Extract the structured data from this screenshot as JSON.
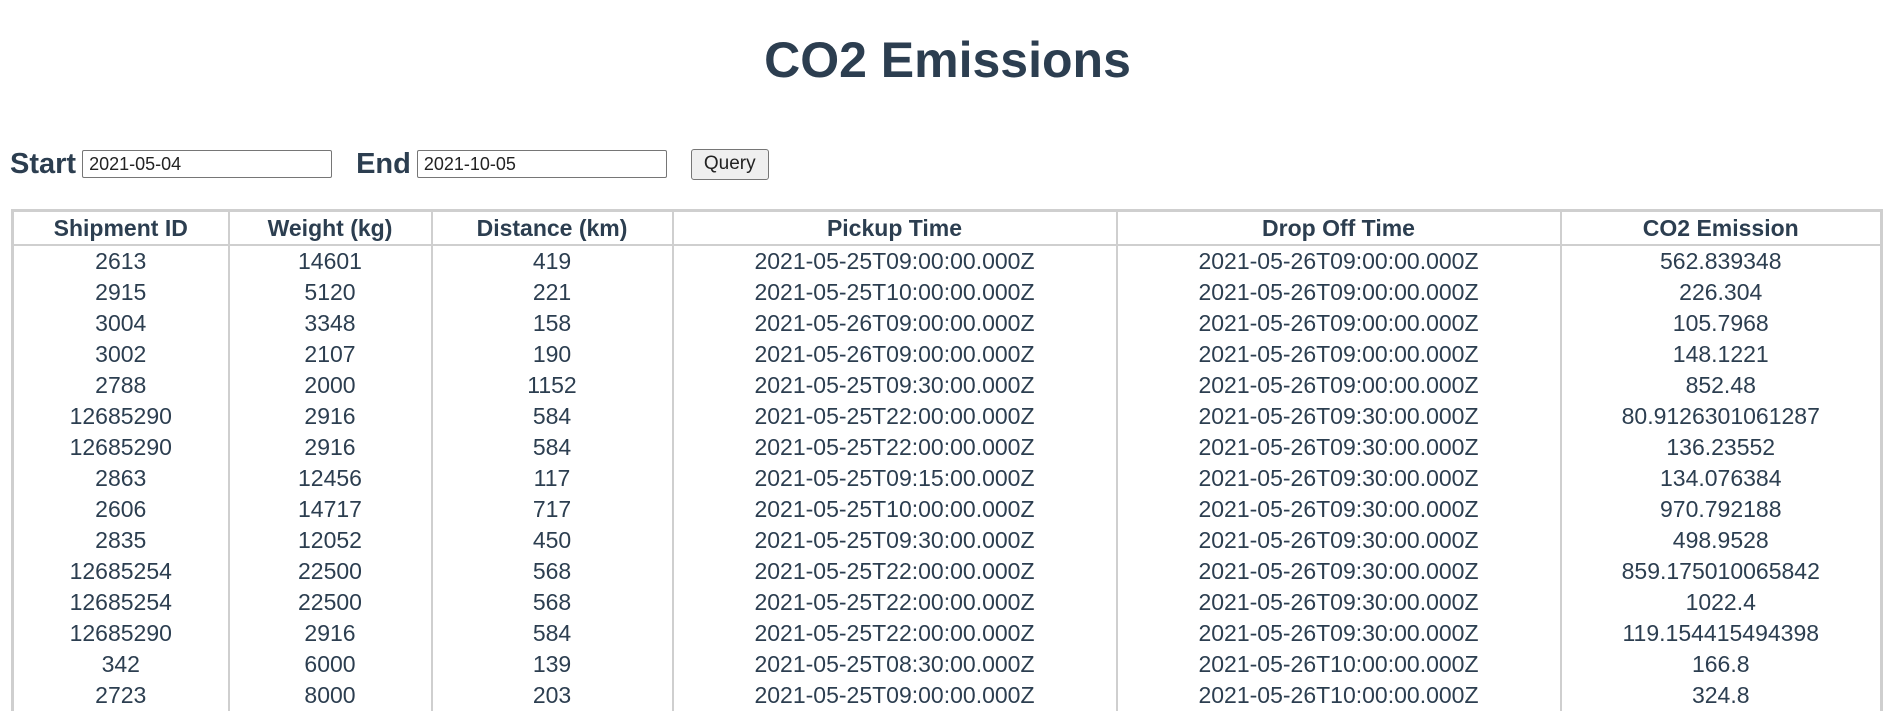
{
  "page": {
    "title": "CO2 Emissions"
  },
  "query": {
    "start_label": "Start",
    "start_value": "2021-05-04",
    "end_label": "End",
    "end_value": "2021-10-05",
    "button_label": "Query"
  },
  "table": {
    "headers": [
      "Shipment ID",
      "Weight (kg)",
      "Distance (km)",
      "Pickup Time",
      "Drop Off Time",
      "CO2 Emission"
    ],
    "rows": [
      [
        "2613",
        "14601",
        "419",
        "2021-05-25T09:00:00.000Z",
        "2021-05-26T09:00:00.000Z",
        "562.839348"
      ],
      [
        "2915",
        "5120",
        "221",
        "2021-05-25T10:00:00.000Z",
        "2021-05-26T09:00:00.000Z",
        "226.304"
      ],
      [
        "3004",
        "3348",
        "158",
        "2021-05-26T09:00:00.000Z",
        "2021-05-26T09:00:00.000Z",
        "105.7968"
      ],
      [
        "3002",
        "2107",
        "190",
        "2021-05-26T09:00:00.000Z",
        "2021-05-26T09:00:00.000Z",
        "148.1221"
      ],
      [
        "2788",
        "2000",
        "1152",
        "2021-05-25T09:30:00.000Z",
        "2021-05-26T09:00:00.000Z",
        "852.48"
      ],
      [
        "12685290",
        "2916",
        "584",
        "2021-05-25T22:00:00.000Z",
        "2021-05-26T09:30:00.000Z",
        "80.9126301061287"
      ],
      [
        "12685290",
        "2916",
        "584",
        "2021-05-25T22:00:00.000Z",
        "2021-05-26T09:30:00.000Z",
        "136.23552"
      ],
      [
        "2863",
        "12456",
        "117",
        "2021-05-25T09:15:00.000Z",
        "2021-05-26T09:30:00.000Z",
        "134.076384"
      ],
      [
        "2606",
        "14717",
        "717",
        "2021-05-25T10:00:00.000Z",
        "2021-05-26T09:30:00.000Z",
        "970.792188"
      ],
      [
        "2835",
        "12052",
        "450",
        "2021-05-25T09:30:00.000Z",
        "2021-05-26T09:30:00.000Z",
        "498.9528"
      ],
      [
        "12685254",
        "22500",
        "568",
        "2021-05-25T22:00:00.000Z",
        "2021-05-26T09:30:00.000Z",
        "859.175010065842"
      ],
      [
        "12685254",
        "22500",
        "568",
        "2021-05-25T22:00:00.000Z",
        "2021-05-26T09:30:00.000Z",
        "1022.4"
      ],
      [
        "12685290",
        "2916",
        "584",
        "2021-05-25T22:00:00.000Z",
        "2021-05-26T09:30:00.000Z",
        "119.154415494398"
      ],
      [
        "342",
        "6000",
        "139",
        "2021-05-25T08:30:00.000Z",
        "2021-05-26T10:00:00.000Z",
        "166.8"
      ],
      [
        "2723",
        "8000",
        "203",
        "2021-05-25T09:00:00.000Z",
        "2021-05-26T10:00:00.000Z",
        "324.8"
      ]
    ]
  }
}
